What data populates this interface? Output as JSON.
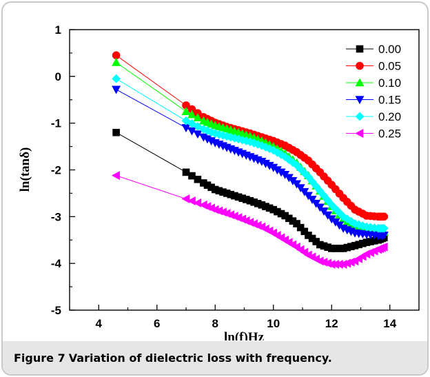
{
  "caption": {
    "figure_label": "Figure 7",
    "text": "Variation of dielectric loss with frequency."
  },
  "chart_data": {
    "type": "line",
    "xlabel": "ln(f)Hz",
    "ylabel": "ln(tanδ)",
    "xlim": [
      3,
      15
    ],
    "ylim": [
      -5,
      1
    ],
    "xticks": [
      4,
      6,
      8,
      10,
      12,
      14
    ],
    "yticks": [
      -5,
      -4,
      -3,
      -2,
      -1,
      0,
      1
    ],
    "legend_position": "top-right",
    "series": [
      {
        "name": "0.00",
        "color": "#000000",
        "marker": "square",
        "x": [
          4.6,
          7.0,
          7.6,
          8.0,
          8.4,
          8.8,
          9.2,
          9.6,
          10.0,
          10.4,
          10.8,
          11.2,
          11.6,
          12.0,
          12.4,
          12.8,
          13.2,
          13.6,
          13.8
        ],
        "y": [
          -1.2,
          -2.05,
          -2.28,
          -2.42,
          -2.5,
          -2.58,
          -2.66,
          -2.75,
          -2.85,
          -2.98,
          -3.15,
          -3.4,
          -3.6,
          -3.68,
          -3.68,
          -3.62,
          -3.55,
          -3.5,
          -3.45
        ]
      },
      {
        "name": "0.05",
        "color": "#ff0000",
        "marker": "circle",
        "x": [
          4.6,
          7.0,
          7.6,
          8.0,
          8.4,
          8.8,
          9.2,
          9.6,
          10.0,
          10.4,
          10.8,
          11.2,
          11.6,
          12.0,
          12.4,
          12.8,
          13.2,
          13.6,
          13.8
        ],
        "y": [
          0.45,
          -0.62,
          -0.87,
          -0.99,
          -1.08,
          -1.15,
          -1.22,
          -1.3,
          -1.38,
          -1.48,
          -1.62,
          -1.8,
          -2.05,
          -2.32,
          -2.6,
          -2.85,
          -2.98,
          -3.0,
          -3.0
        ]
      },
      {
        "name": "0.10",
        "color": "#00ff00",
        "marker": "triangle-up",
        "x": [
          4.6,
          7.0,
          7.6,
          8.0,
          8.4,
          8.8,
          9.2,
          9.6,
          10.0,
          10.4,
          10.8,
          11.2,
          11.6,
          12.0,
          12.4,
          12.8,
          13.2,
          13.6,
          13.8
        ],
        "y": [
          0.3,
          -0.75,
          -0.95,
          -1.05,
          -1.12,
          -1.2,
          -1.28,
          -1.38,
          -1.5,
          -1.65,
          -1.85,
          -2.12,
          -2.45,
          -2.78,
          -3.05,
          -3.22,
          -3.3,
          -3.32,
          -3.33
        ]
      },
      {
        "name": "0.15",
        "color": "#0000ff",
        "marker": "triangle-down",
        "x": [
          4.6,
          7.0,
          7.6,
          8.0,
          8.4,
          8.8,
          9.2,
          9.6,
          10.0,
          10.4,
          10.8,
          11.2,
          11.6,
          12.0,
          12.4,
          12.8,
          13.2,
          13.6,
          13.8
        ],
        "y": [
          -0.28,
          -1.1,
          -1.3,
          -1.42,
          -1.52,
          -1.62,
          -1.72,
          -1.82,
          -1.95,
          -2.1,
          -2.3,
          -2.55,
          -2.8,
          -3.05,
          -3.25,
          -3.35,
          -3.38,
          -3.4,
          -3.4
        ]
      },
      {
        "name": "0.20",
        "color": "#00ffff",
        "marker": "diamond",
        "x": [
          4.6,
          7.0,
          7.6,
          8.0,
          8.4,
          8.8,
          9.2,
          9.6,
          10.0,
          10.4,
          10.8,
          11.2,
          11.6,
          12.0,
          12.4,
          12.8,
          13.2,
          13.6,
          13.8
        ],
        "y": [
          -0.05,
          -0.95,
          -1.13,
          -1.22,
          -1.28,
          -1.34,
          -1.4,
          -1.48,
          -1.58,
          -1.72,
          -1.9,
          -2.15,
          -2.45,
          -2.75,
          -3.0,
          -3.15,
          -3.22,
          -3.25,
          -3.25
        ]
      },
      {
        "name": "0.25",
        "color": "#ff00ff",
        "marker": "triangle-left",
        "x": [
          4.6,
          7.0,
          7.6,
          8.0,
          8.4,
          8.8,
          9.2,
          9.6,
          10.0,
          10.4,
          10.8,
          11.2,
          11.6,
          12.0,
          12.4,
          12.8,
          13.2,
          13.6,
          13.8
        ],
        "y": [
          -2.12,
          -2.62,
          -2.75,
          -2.85,
          -2.93,
          -3.02,
          -3.12,
          -3.22,
          -3.35,
          -3.5,
          -3.65,
          -3.82,
          -3.95,
          -4.02,
          -4.02,
          -3.95,
          -3.8,
          -3.7,
          -3.65
        ]
      }
    ]
  }
}
